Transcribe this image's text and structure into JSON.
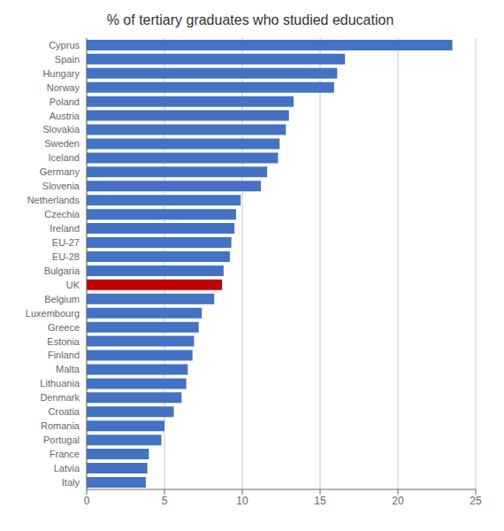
{
  "chart_data": {
    "type": "bar",
    "title": "% of tertiary graduates who studied education",
    "orientation": "horizontal",
    "categories": [
      "Cyprus",
      "Spain",
      "Hungary",
      "Norway",
      "Poland",
      "Austria",
      "Slovakia",
      "Sweden",
      "Iceland",
      "Germany",
      "Slovenia",
      "Netherlands",
      "Czechia",
      "Ireland",
      "EU-27",
      "EU-28",
      "Bulgaria",
      "UK",
      "Belgium",
      "Luxembourg",
      "Greece",
      "Estonia",
      "Finland",
      "Malta",
      "Lithuania",
      "Denmark",
      "Croatia",
      "Romania",
      "Portugal",
      "France",
      "Latvia",
      "Italy"
    ],
    "values": [
      23.5,
      16.6,
      16.1,
      15.9,
      13.3,
      13.0,
      12.8,
      12.4,
      12.3,
      11.6,
      11.2,
      9.9,
      9.6,
      9.5,
      9.3,
      9.2,
      8.8,
      8.7,
      8.2,
      7.4,
      7.2,
      6.9,
      6.8,
      6.5,
      6.4,
      6.1,
      5.6,
      5.0,
      4.8,
      4.0,
      3.9,
      3.8
    ],
    "colors": [
      "#4472C4",
      "#4472C4",
      "#4472C4",
      "#4472C4",
      "#4472C4",
      "#4472C4",
      "#4472C4",
      "#4472C4",
      "#4472C4",
      "#4472C4",
      "#4472C4",
      "#4472C4",
      "#4472C4",
      "#4472C4",
      "#4472C4",
      "#4472C4",
      "#4472C4",
      "#C00000",
      "#4472C4",
      "#4472C4",
      "#4472C4",
      "#4472C4",
      "#4472C4",
      "#4472C4",
      "#4472C4",
      "#4472C4",
      "#4472C4",
      "#4472C4",
      "#4472C4",
      "#4472C4",
      "#4472C4",
      "#4472C4"
    ],
    "xlim": [
      0,
      25
    ],
    "xticks": [
      0,
      5,
      10,
      15,
      20,
      25
    ],
    "grid": true
  }
}
